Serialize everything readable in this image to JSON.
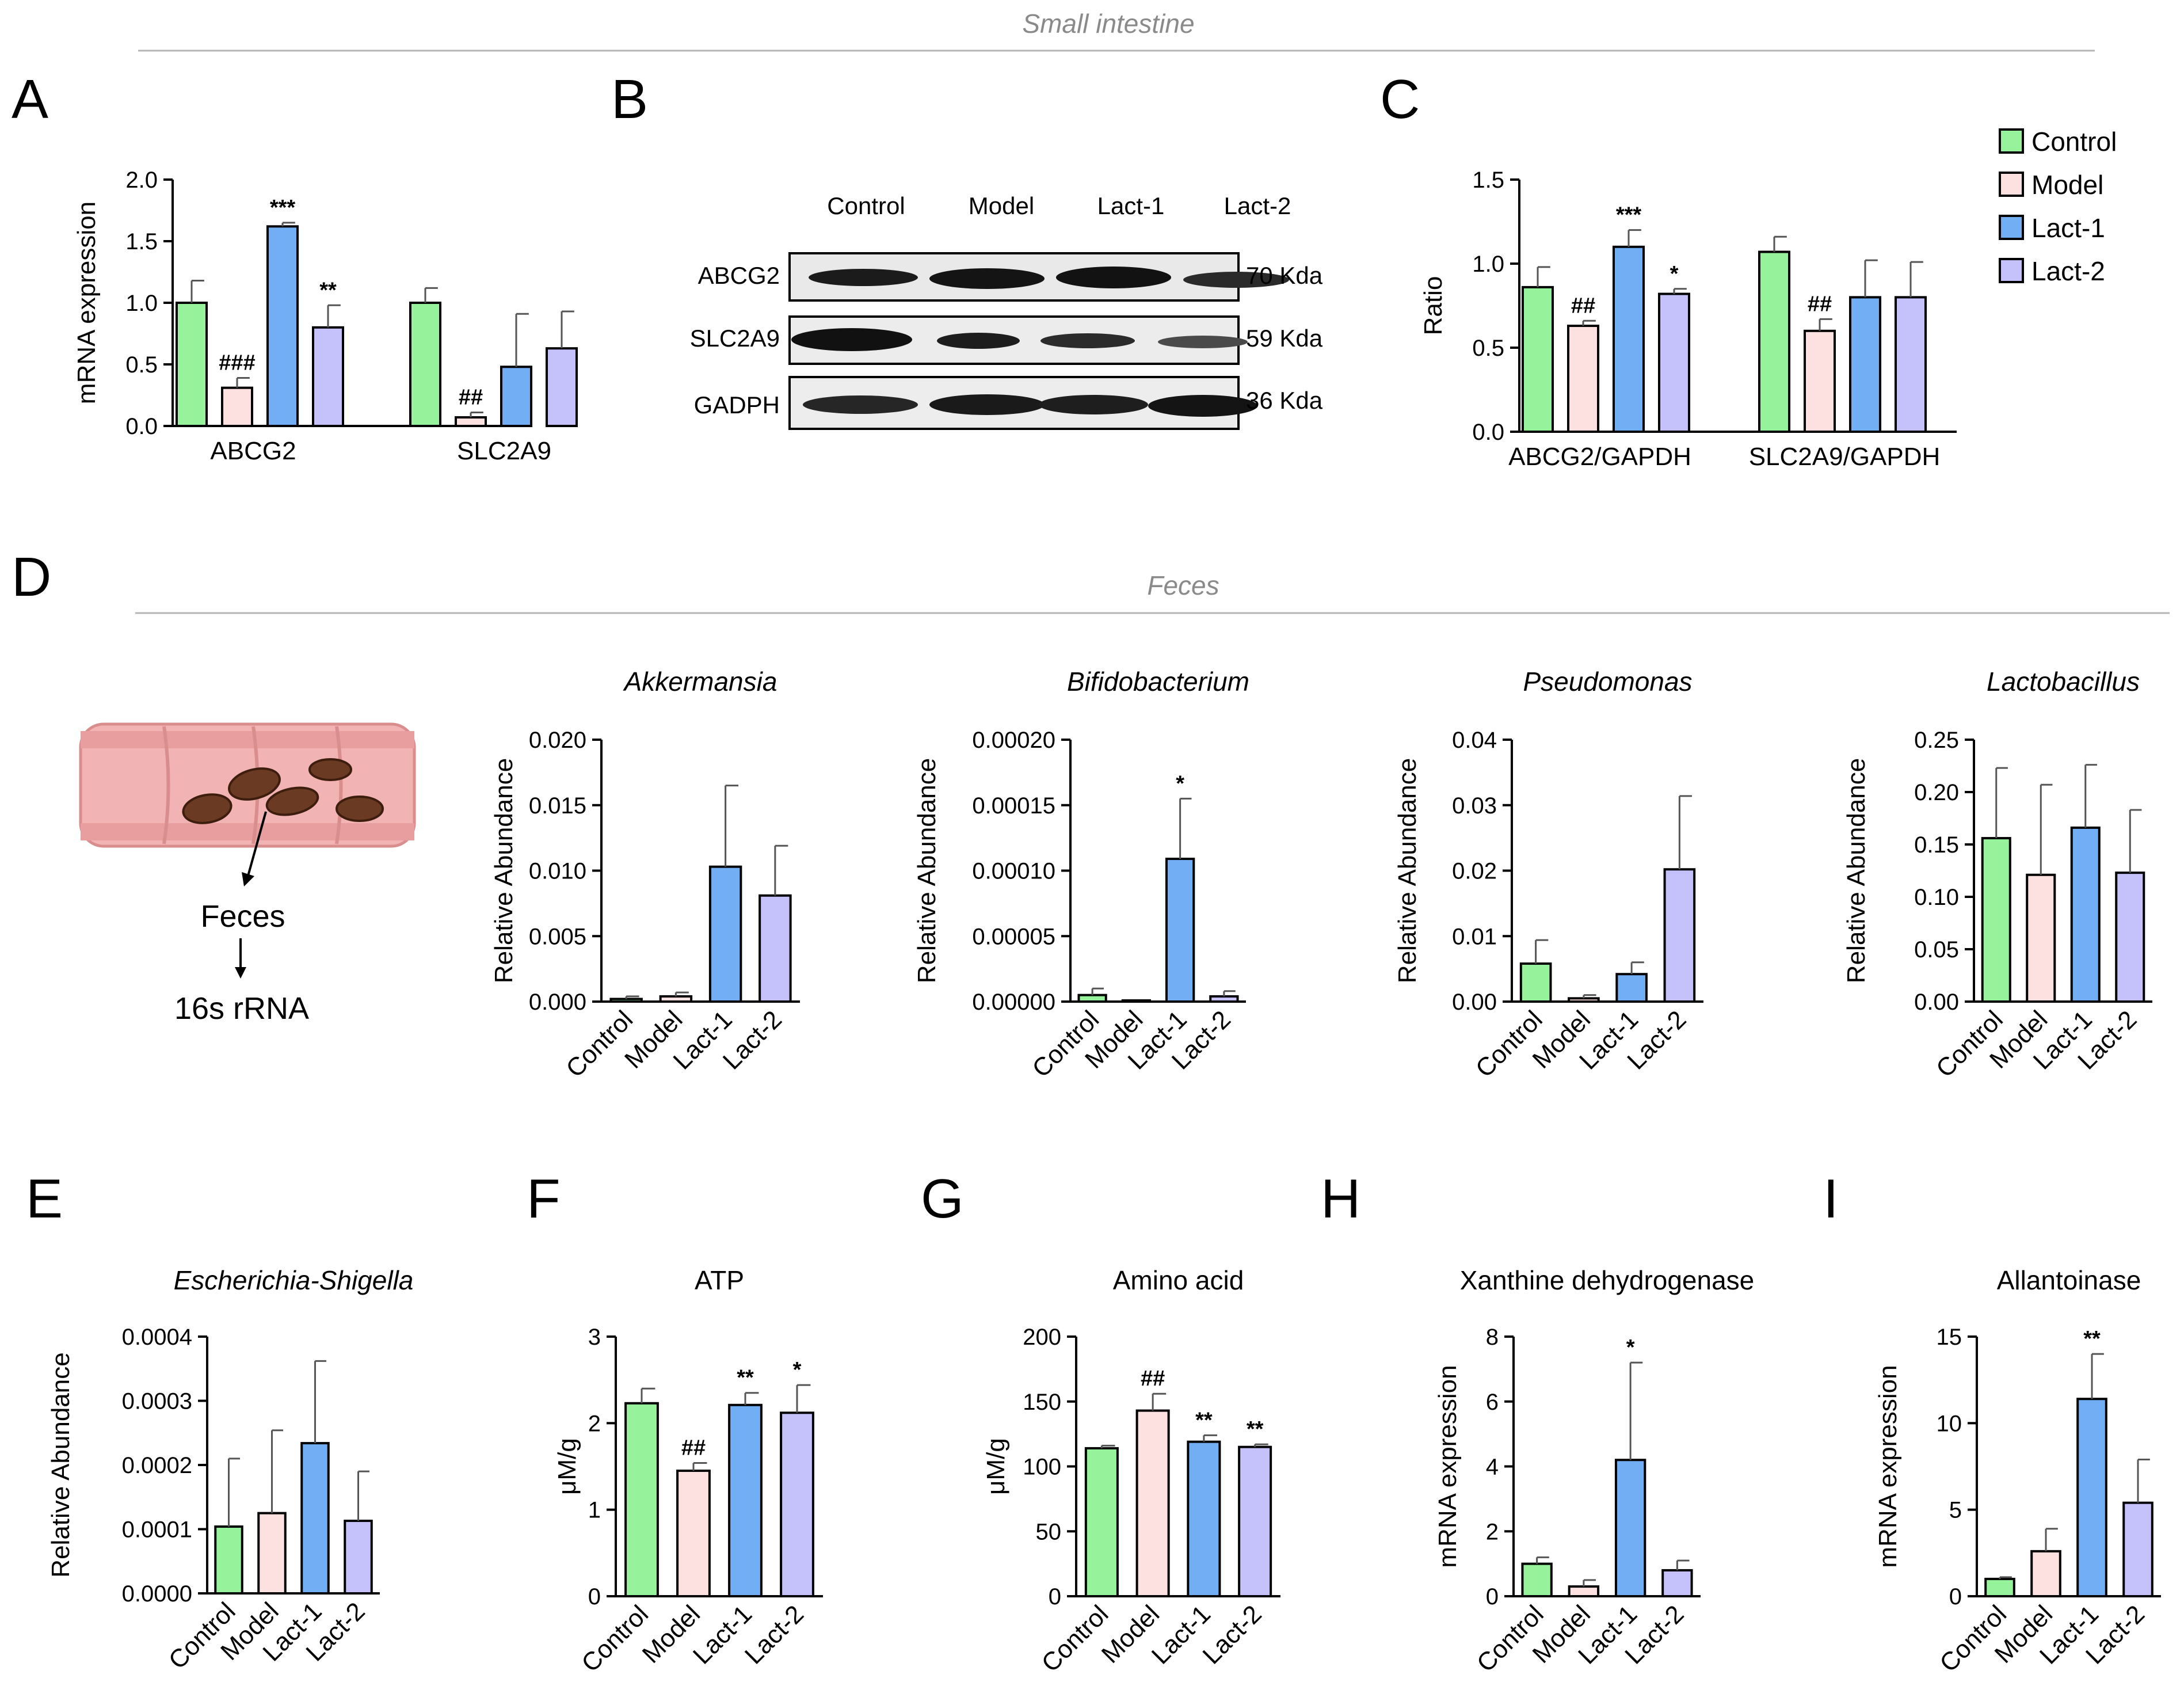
{
  "figure": {
    "panel_letters": [
      "A",
      "B",
      "C",
      "D",
      "E",
      "F",
      "G",
      "H",
      "I"
    ],
    "section_small_intestine": "Small intestine",
    "section_feces": "Feces",
    "legend": [
      {
        "label": "Control",
        "color": "#97f39b"
      },
      {
        "label": "Model",
        "color": "#fde0e0"
      },
      {
        "label": "Lact-1",
        "color": "#72aef4"
      },
      {
        "label": "Lact-2",
        "color": "#c5c1fb"
      }
    ],
    "schematic": {
      "step1": "Feces",
      "step2": "16s rRNA"
    },
    "western_blot": {
      "lanes": [
        "Control",
        "Model",
        "Lact-1",
        "Lact-2"
      ],
      "rows": [
        {
          "protein": "ABCG2",
          "size": "70 Kda"
        },
        {
          "protein": "SLC2A9",
          "size": "59 Kda"
        },
        {
          "protein": "GADPH",
          "size": "36 Kda"
        }
      ]
    }
  },
  "chart_data": [
    {
      "id": "A",
      "type": "bar",
      "title": "",
      "ylabel": "mRNA expression",
      "ylim": [
        0,
        2.0
      ],
      "yticks": [
        "0.0",
        "0.5",
        "1.0",
        "1.5",
        "2.0"
      ],
      "categories": [
        "ABCG2",
        "SLC2A9"
      ],
      "series": [
        {
          "name": "Control",
          "values": [
            1.0,
            1.0
          ],
          "errors": [
            0.18,
            0.12
          ],
          "marks": [
            "",
            ""
          ]
        },
        {
          "name": "Model",
          "values": [
            0.31,
            0.07
          ],
          "errors": [
            0.08,
            0.04
          ],
          "marks": [
            "###",
            "##"
          ]
        },
        {
          "name": "Lact-1",
          "values": [
            1.62,
            0.48
          ],
          "errors": [
            0.03,
            0.43
          ],
          "marks": [
            "***",
            ""
          ]
        },
        {
          "name": "Lact-2",
          "values": [
            0.8,
            0.63
          ],
          "errors": [
            0.18,
            0.3
          ],
          "marks": [
            "**",
            ""
          ]
        }
      ]
    },
    {
      "id": "C",
      "type": "bar",
      "title": "",
      "ylabel": "Ratio",
      "ylim": [
        0,
        1.5
      ],
      "yticks": [
        "0.0",
        "0.5",
        "1.0",
        "1.5"
      ],
      "categories": [
        "ABCG2/GAPDH",
        "SLC2A9/GAPDH"
      ],
      "series": [
        {
          "name": "Control",
          "values": [
            0.86,
            1.07
          ],
          "errors": [
            0.12,
            0.09
          ],
          "marks": [
            "",
            ""
          ]
        },
        {
          "name": "Model",
          "values": [
            0.63,
            0.6
          ],
          "errors": [
            0.03,
            0.07
          ],
          "marks": [
            "##",
            "##"
          ]
        },
        {
          "name": "Lact-1",
          "values": [
            1.1,
            0.8
          ],
          "errors": [
            0.1,
            0.22
          ],
          "marks": [
            "***",
            ""
          ]
        },
        {
          "name": "Lact-2",
          "values": [
            0.82,
            0.8
          ],
          "errors": [
            0.03,
            0.21
          ],
          "marks": [
            "*",
            ""
          ]
        }
      ]
    },
    {
      "id": "D1",
      "type": "bar",
      "title": "Akkermansia",
      "title_italic": true,
      "ylabel": "Relative Abundance",
      "ylim": [
        0,
        0.02
      ],
      "yticks": [
        "0.000",
        "0.005",
        "0.010",
        "0.015",
        "0.020"
      ],
      "categories": [
        "Control",
        "Model",
        "Lact-1",
        "Lact-2"
      ],
      "values": [
        0.0002,
        0.0004,
        0.0103,
        0.0081
      ],
      "errors": [
        0.0002,
        0.0003,
        0.0062,
        0.0038
      ],
      "marks": [
        "",
        "",
        "",
        ""
      ]
    },
    {
      "id": "D2",
      "type": "bar",
      "title": "Bifidobacterium",
      "title_italic": true,
      "ylabel": "Relative Abundance",
      "ylim": [
        0,
        0.0002
      ],
      "yticks": [
        "0.00000",
        "0.00005",
        "0.00010",
        "0.00015",
        "0.00020"
      ],
      "categories": [
        "Control",
        "Model",
        "Lact-1",
        "Lact-2"
      ],
      "values": [
        5e-06,
        0.0,
        0.000109,
        4e-06
      ],
      "errors": [
        5e-06,
        0.0,
        4.6e-05,
        4e-06
      ],
      "marks": [
        "",
        "",
        "*",
        ""
      ]
    },
    {
      "id": "D3",
      "type": "bar",
      "title": "Pseudomonas",
      "title_italic": true,
      "ylabel": "Relative Abundance",
      "ylim": [
        0,
        0.04
      ],
      "yticks": [
        "0.00",
        "0.01",
        "0.02",
        "0.03",
        "0.04"
      ],
      "categories": [
        "Control",
        "Model",
        "Lact-1",
        "Lact-2"
      ],
      "values": [
        0.0058,
        0.0005,
        0.0042,
        0.0202
      ],
      "errors": [
        0.0036,
        0.0005,
        0.0018,
        0.0112
      ],
      "marks": [
        "",
        "",
        "",
        ""
      ]
    },
    {
      "id": "D4",
      "type": "bar",
      "title": "Lactobacillus",
      "title_italic": true,
      "ylabel": "Relative Abundance",
      "ylim": [
        0,
        0.25
      ],
      "yticks": [
        "0.00",
        "0.05",
        "0.10",
        "0.15",
        "0.20",
        "0.25"
      ],
      "categories": [
        "Control",
        "Model",
        "Lact-1",
        "Lact-2"
      ],
      "values": [
        0.156,
        0.121,
        0.166,
        0.123
      ],
      "errors": [
        0.067,
        0.086,
        0.06,
        0.06
      ],
      "marks": [
        "",
        "",
        "",
        ""
      ]
    },
    {
      "id": "E",
      "type": "bar",
      "title": "Escherichia-Shigella",
      "title_italic": true,
      "ylabel": "Relative Abundance",
      "ylim": [
        0,
        0.0004
      ],
      "yticks": [
        "0.0000",
        "0.0001",
        "0.0002",
        "0.0003",
        "0.0004"
      ],
      "categories": [
        "Control",
        "Model",
        "Lact-1",
        "Lact-2"
      ],
      "values": [
        0.000104,
        0.000125,
        0.000234,
        0.000113
      ],
      "errors": [
        0.000106,
        0.000129,
        0.000128,
        7.7e-05
      ],
      "marks": [
        "",
        "",
        "",
        ""
      ]
    },
    {
      "id": "F",
      "type": "bar",
      "title": "ATP",
      "title_italic": false,
      "ylabel": "μM/g",
      "ylim": [
        0,
        3
      ],
      "yticks": [
        "0",
        "1",
        "2",
        "3"
      ],
      "categories": [
        "Control",
        "Model",
        "Lact-1",
        "Lact-2"
      ],
      "values": [
        2.23,
        1.45,
        2.21,
        2.12
      ],
      "errors": [
        0.17,
        0.09,
        0.14,
        0.32
      ],
      "marks": [
        "",
        "##",
        "**",
        "*"
      ]
    },
    {
      "id": "G",
      "type": "bar",
      "title": "Amino acid",
      "title_italic": false,
      "ylabel": "μM/g",
      "ylim": [
        0,
        200
      ],
      "yticks": [
        "0",
        "50",
        "100",
        "150",
        "200"
      ],
      "categories": [
        "Control",
        "Model",
        "Lact-1",
        "Lact-2"
      ],
      "values": [
        114,
        143,
        119,
        115
      ],
      "errors": [
        2,
        13,
        5,
        2
      ],
      "marks": [
        "",
        "##",
        "**",
        "**"
      ]
    },
    {
      "id": "H",
      "type": "bar",
      "title": "Xanthine dehydrogenase",
      "title_italic": false,
      "ylabel": "mRNA expression",
      "ylim": [
        0,
        8
      ],
      "yticks": [
        "0",
        "2",
        "4",
        "6",
        "8"
      ],
      "categories": [
        "Control",
        "Model",
        "Lact-1",
        "Lact-2"
      ],
      "values": [
        1.0,
        0.3,
        4.2,
        0.8
      ],
      "errors": [
        0.2,
        0.2,
        3.0,
        0.3
      ],
      "marks": [
        "",
        "",
        "*",
        ""
      ]
    },
    {
      "id": "I",
      "type": "bar",
      "title": "Allantoinase",
      "title_italic": false,
      "ylabel": "mRNA expression",
      "ylim": [
        0,
        15
      ],
      "yticks": [
        "0",
        "5",
        "10",
        "15"
      ],
      "categories": [
        "Control",
        "Model",
        "Lact-1",
        "Lact-2"
      ],
      "values": [
        1.0,
        2.6,
        11.4,
        5.4
      ],
      "errors": [
        0.1,
        1.3,
        2.6,
        2.5
      ],
      "marks": [
        "",
        "",
        "**",
        ""
      ]
    }
  ]
}
